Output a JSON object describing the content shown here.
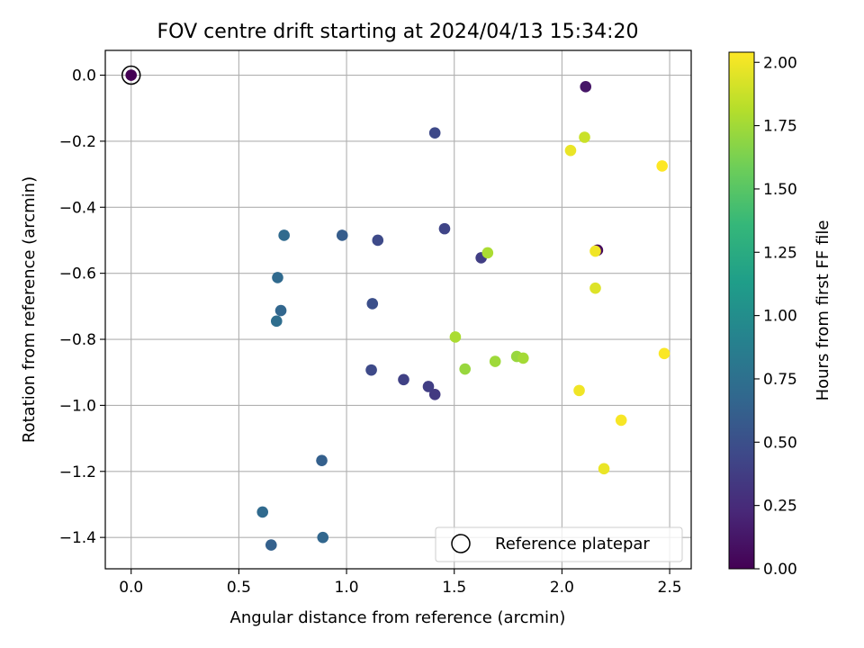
{
  "chart_data": {
    "type": "scatter",
    "title": "FOV centre drift starting at 2024/04/13 15:34:20",
    "xlabel": "Angular distance from reference (arcmin)",
    "ylabel": "Rotation from reference (arcmin)",
    "xlim": [
      -0.12,
      2.6
    ],
    "ylim": [
      -1.495,
      0.075
    ],
    "xticks": [
      0.0,
      0.5,
      1.0,
      1.5,
      2.0,
      2.5
    ],
    "xtick_labels": [
      "0.0",
      "0.5",
      "1.0",
      "1.5",
      "2.0",
      "2.5"
    ],
    "yticks": [
      0.0,
      -0.2,
      -0.4,
      -0.6,
      -0.8,
      -1.0,
      -1.2,
      -1.4
    ],
    "ytick_labels": [
      "0.0",
      "−0.2",
      "−0.4",
      "−0.6",
      "−0.8",
      "−1.0",
      "−1.2",
      "−1.4"
    ],
    "grid": true,
    "colormap": "viridis",
    "colorbar": {
      "label": "Hours from first FF file",
      "range": [
        0.0,
        2.04
      ],
      "ticks": [
        0.0,
        0.25,
        0.5,
        0.75,
        1.0,
        1.25,
        1.5,
        1.75,
        2.0
      ],
      "tick_labels": [
        "0.00",
        "0.25",
        "0.50",
        "0.75",
        "1.00",
        "1.25",
        "1.50",
        "1.75",
        "2.00"
      ]
    },
    "legend": {
      "location": "lower-right",
      "entries": [
        {
          "label": "Reference platepar",
          "marker": "open-circle"
        }
      ]
    },
    "reference_point": {
      "x": 0.0,
      "y": 0.0
    },
    "points": [
      {
        "x": 0.0,
        "y": 0.0,
        "hours": 0.0
      },
      {
        "x": 2.11,
        "y": -0.035,
        "hours": 0.12
      },
      {
        "x": 2.165,
        "y": -0.53,
        "hours": 0.05
      },
      {
        "x": 1.41,
        "y": -0.175,
        "hours": 0.45
      },
      {
        "x": 1.455,
        "y": -0.465,
        "hours": 0.42
      },
      {
        "x": 1.145,
        "y": -0.5,
        "hours": 0.46
      },
      {
        "x": 1.625,
        "y": -0.553,
        "hours": 0.38
      },
      {
        "x": 1.12,
        "y": -0.692,
        "hours": 0.5
      },
      {
        "x": 1.115,
        "y": -0.893,
        "hours": 0.46
      },
      {
        "x": 1.265,
        "y": -0.922,
        "hours": 0.4
      },
      {
        "x": 1.38,
        "y": -0.943,
        "hours": 0.38
      },
      {
        "x": 1.41,
        "y": -0.967,
        "hours": 0.35
      },
      {
        "x": 0.98,
        "y": -0.485,
        "hours": 0.6
      },
      {
        "x": 0.71,
        "y": -0.485,
        "hours": 0.7
      },
      {
        "x": 0.68,
        "y": -0.613,
        "hours": 0.7
      },
      {
        "x": 0.695,
        "y": -0.713,
        "hours": 0.67
      },
      {
        "x": 0.675,
        "y": -0.745,
        "hours": 0.73
      },
      {
        "x": 0.885,
        "y": -1.167,
        "hours": 0.62
      },
      {
        "x": 0.89,
        "y": -1.4,
        "hours": 0.67
      },
      {
        "x": 0.61,
        "y": -1.323,
        "hours": 0.7
      },
      {
        "x": 0.65,
        "y": -1.423,
        "hours": 0.63
      },
      {
        "x": 1.655,
        "y": -0.538,
        "hours": 1.78
      },
      {
        "x": 1.505,
        "y": -0.793,
        "hours": 1.78
      },
      {
        "x": 1.55,
        "y": -0.89,
        "hours": 1.72
      },
      {
        "x": 1.69,
        "y": -0.867,
        "hours": 1.74
      },
      {
        "x": 1.79,
        "y": -0.852,
        "hours": 1.72
      },
      {
        "x": 1.82,
        "y": -0.857,
        "hours": 1.76
      },
      {
        "x": 2.04,
        "y": -0.228,
        "hours": 1.98
      },
      {
        "x": 2.105,
        "y": -0.188,
        "hours": 1.88
      },
      {
        "x": 2.465,
        "y": -0.275,
        "hours": 2.04
      },
      {
        "x": 2.155,
        "y": -0.533,
        "hours": 2.0
      },
      {
        "x": 2.155,
        "y": -0.645,
        "hours": 1.94
      },
      {
        "x": 2.08,
        "y": -0.955,
        "hours": 2.0
      },
      {
        "x": 2.475,
        "y": -0.843,
        "hours": 2.03
      },
      {
        "x": 2.275,
        "y": -1.045,
        "hours": 2.02
      },
      {
        "x": 2.195,
        "y": -1.192,
        "hours": 1.98
      }
    ]
  },
  "colors": {
    "grid": "#b0b0b0",
    "viridis_stops": [
      "#440154",
      "#482878",
      "#3e4989",
      "#31688e",
      "#26828e",
      "#1f9e89",
      "#35b779",
      "#6ece58",
      "#b5de2b",
      "#fde725"
    ]
  }
}
